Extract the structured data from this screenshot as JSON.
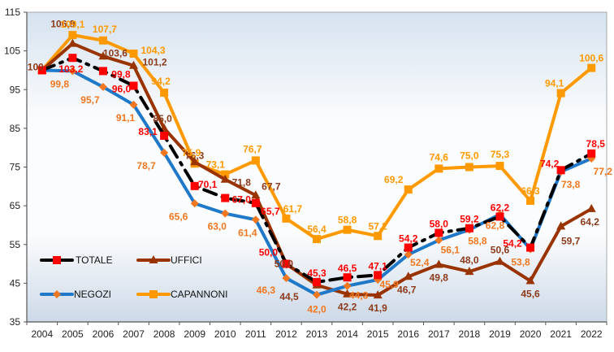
{
  "chart_data": {
    "type": "line",
    "title": "",
    "xlabel": "",
    "ylabel": "",
    "ylim": [
      35,
      115
    ],
    "yticks": [
      35,
      45,
      55,
      65,
      75,
      85,
      95,
      105,
      115
    ],
    "categories": [
      "2004",
      "2005",
      "2006",
      "2007",
      "2008",
      "2009",
      "2010",
      "2011",
      "2012",
      "2013",
      "2014",
      "2015",
      "2016",
      "2017",
      "2018",
      "2019",
      "2020",
      "2021",
      "2022"
    ],
    "grid": false,
    "legend_position": "bottom-left",
    "series": [
      {
        "name": "TOTALE",
        "line_color": "#000000",
        "marker_color": "#ff0000",
        "label_color": "#ff0000",
        "marker": "square",
        "line_style": "dash-dot",
        "values": [
          100,
          103.2,
          99.8,
          96.0,
          83.1,
          70.1,
          67.0,
          65.7,
          50.0,
          45.3,
          46.5,
          47.1,
          54.2,
          58.0,
          59.2,
          62.2,
          54.2,
          74.2,
          78.5
        ],
        "labels": [
          "",
          "103,2",
          "99,8",
          "96,0",
          "83,1",
          "70,1",
          "67,0",
          "65,7",
          "50,0",
          "45,3",
          "46,5",
          "47,1",
          "54,2",
          "58,0",
          "59,2",
          "62,2",
          "54,2",
          "74,2",
          "78,5"
        ]
      },
      {
        "name": "UFFICI",
        "line_color": "#993300",
        "marker_color": "#993300",
        "label_color": "#8b3a1a",
        "marker": "triangle",
        "line_style": "solid",
        "values": [
          100,
          106.9,
          103.6,
          101.2,
          85.0,
          76.3,
          71.8,
          67.7,
          50.0,
          44.5,
          42.2,
          41.9,
          46.7,
          49.8,
          48.0,
          50.6,
          45.6,
          59.7,
          64.2
        ],
        "labels": [
          "100",
          "106,9",
          "103,6",
          "101,2",
          "85,0",
          "76,3",
          "71,8",
          "67,7",
          "50,0",
          "44,5",
          "42,2",
          "41,9",
          "46,7",
          "49,8",
          "48,0",
          "50,6",
          "45,6",
          "59,7",
          "64,2"
        ]
      },
      {
        "name": "NEGOZI",
        "line_color": "#1f78c8",
        "marker_color": "#f07820",
        "label_color": "#f07820",
        "marker": "diamond",
        "line_style": "solid",
        "values": [
          100,
          99.8,
          95.7,
          91.1,
          78.7,
          65.6,
          63.0,
          61.4,
          46.3,
          42.0,
          44.3,
          45.9,
          52.4,
          56.1,
          58.8,
          62.8,
          53.8,
          73.8,
          77.2
        ],
        "labels": [
          "",
          "99,8",
          "95,7",
          "91,1",
          "78,7",
          "65,6",
          "63,0",
          "61,4",
          "46,3",
          "42,0",
          "44,3",
          "45,9",
          "52,4",
          "56,1",
          "58,8",
          "62,8",
          "53,8",
          "73,8",
          "77,2"
        ]
      },
      {
        "name": "CAPANNONI",
        "line_color": "#ff9900",
        "marker_color": "#ff9900",
        "label_color": "#ff9900",
        "marker": "square",
        "line_style": "solid",
        "values": [
          100,
          109.1,
          107.7,
          104.3,
          94.2,
          75.9,
          73.1,
          76.7,
          61.7,
          56.4,
          58.8,
          57.2,
          69.2,
          74.6,
          75.0,
          75.3,
          66.3,
          94.1,
          100.6
        ],
        "labels": [
          "",
          "109,1",
          "107,7",
          "104,3",
          "94,2",
          "75,9",
          "73,1",
          "76,7",
          "61,7",
          "56,4",
          "58,8",
          "57,2",
          "69,2",
          "74,6",
          "75,0",
          "75,3",
          "66,3",
          "94,1",
          "100,6"
        ]
      }
    ]
  }
}
